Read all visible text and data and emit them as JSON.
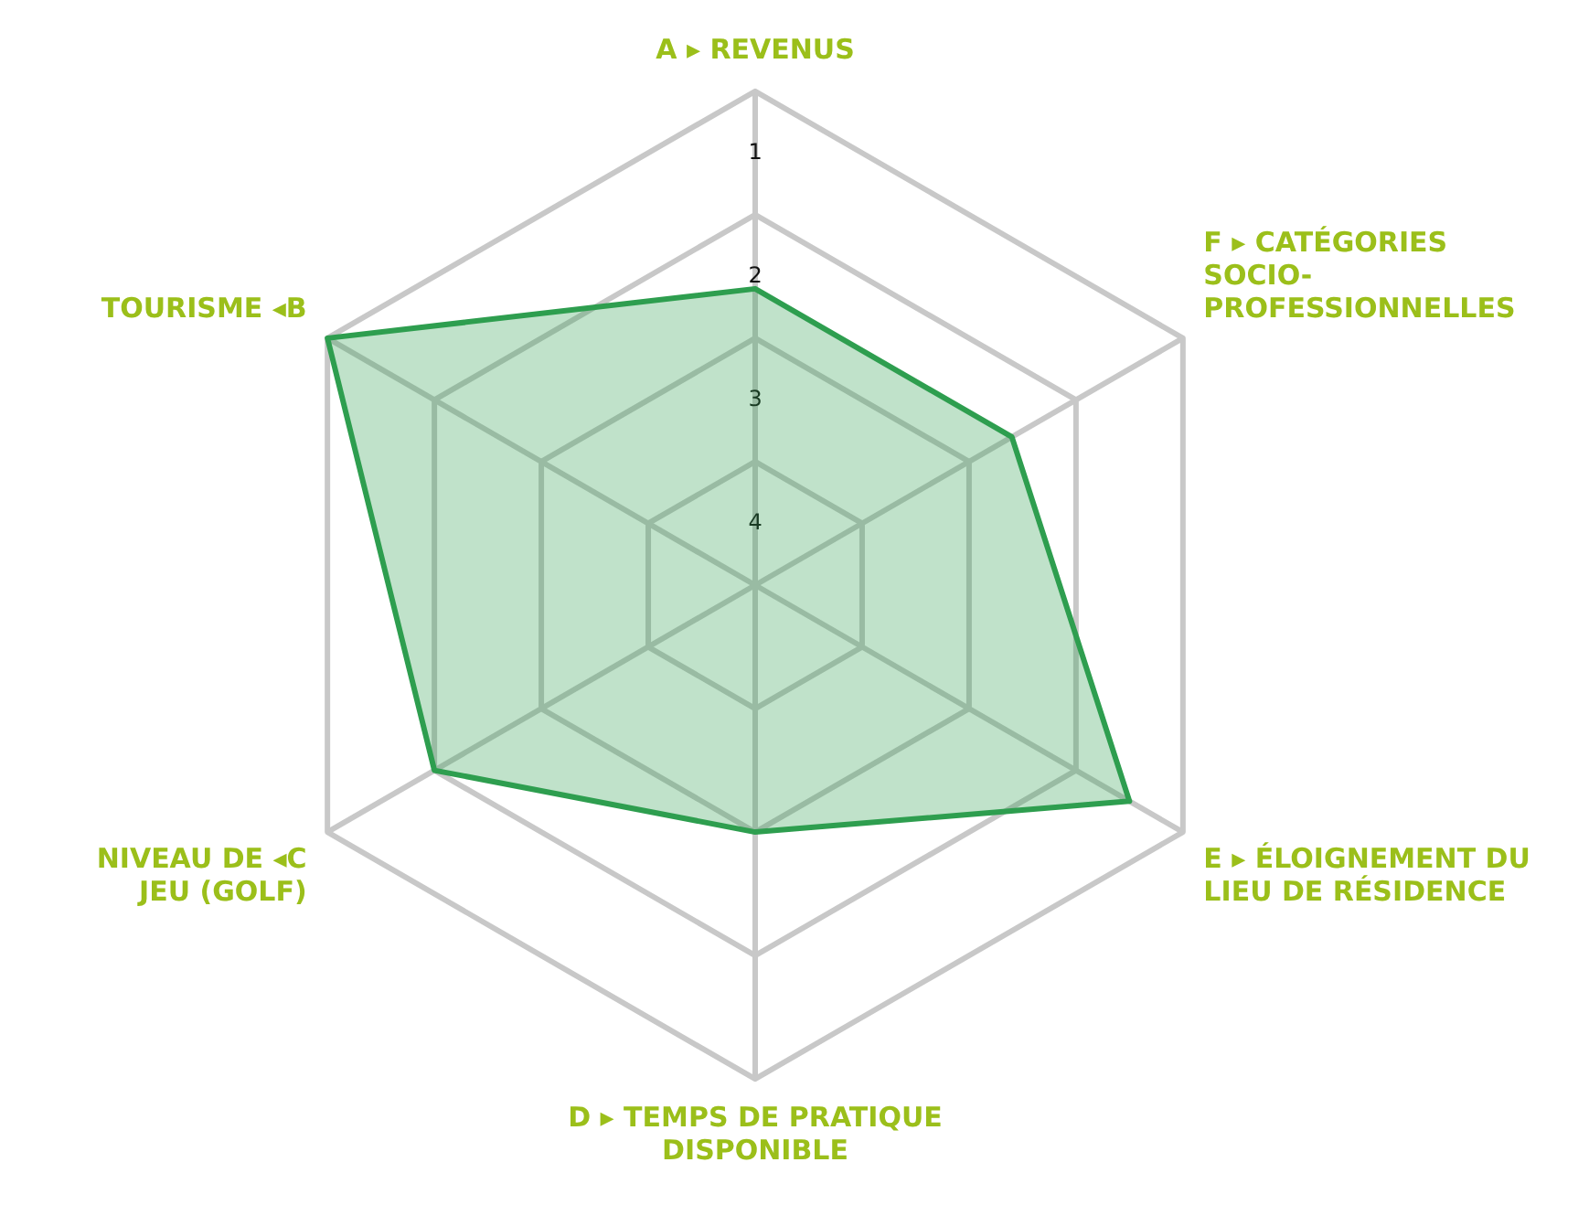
{
  "chart_data": {
    "type": "radar",
    "categories": [
      "A ▸ REVENUS",
      "F ▸ CATÉGORIES\nSOCIO-\nPROFESSIONNELLES",
      "E ▸ ÉLOIGNEMENT DU\nLIEU DE RÉSIDENCE",
      "D ▸ TEMPS DE PRATIQUE\nDISPONIBLE",
      "NIVEAU DE ◂C\nJEU (GOLF)",
      "TOURISME ◂B"
    ],
    "series": [
      {
        "color": "#2e9e4f",
        "values": [
          2.1,
          2.1,
          1.0,
          2.5,
          1.5,
          0.5
        ]
      }
    ],
    "ylim": [
      4.5,
      0.5
    ],
    "yticks": [
      1,
      2,
      3,
      4
    ],
    "grid": true,
    "legend": false
  }
}
